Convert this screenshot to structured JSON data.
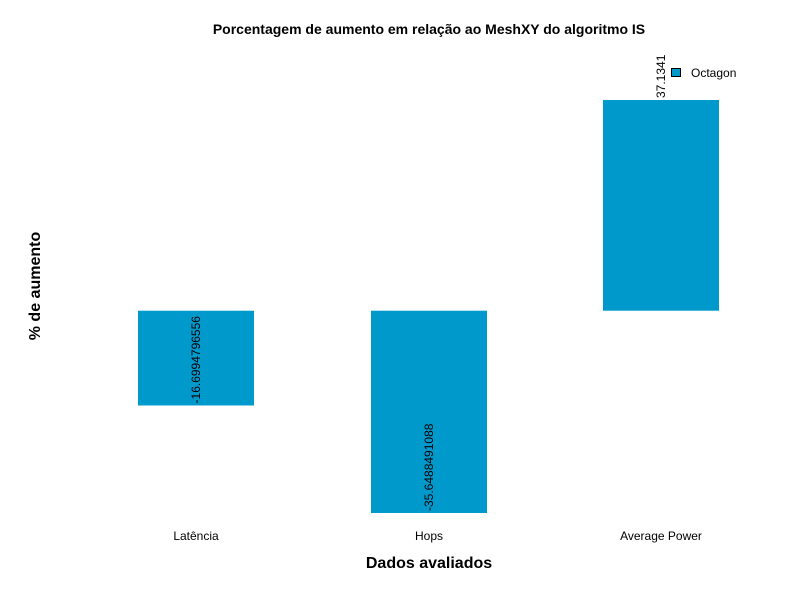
{
  "chart_data": {
    "type": "bar",
    "title": "Porcentagem de aumento em relação ao MeshXY do algoritmo IS",
    "xlabel": "Dados avaliados",
    "ylabel": "% de aumento",
    "categories": [
      "Latência",
      "Hops",
      "Average Power"
    ],
    "series": [
      {
        "name": "Octagon",
        "values": [
          -16.6994796556,
          -35.6488491088,
          37.1341
        ],
        "labels": [
          "-16.6994796556",
          "-35.6488491088",
          "37.1341"
        ],
        "color": "#0099cc"
      }
    ],
    "ylim": [
      -35.6488491088,
      37.1341
    ],
    "grid": false,
    "legend_position": "top-right"
  }
}
